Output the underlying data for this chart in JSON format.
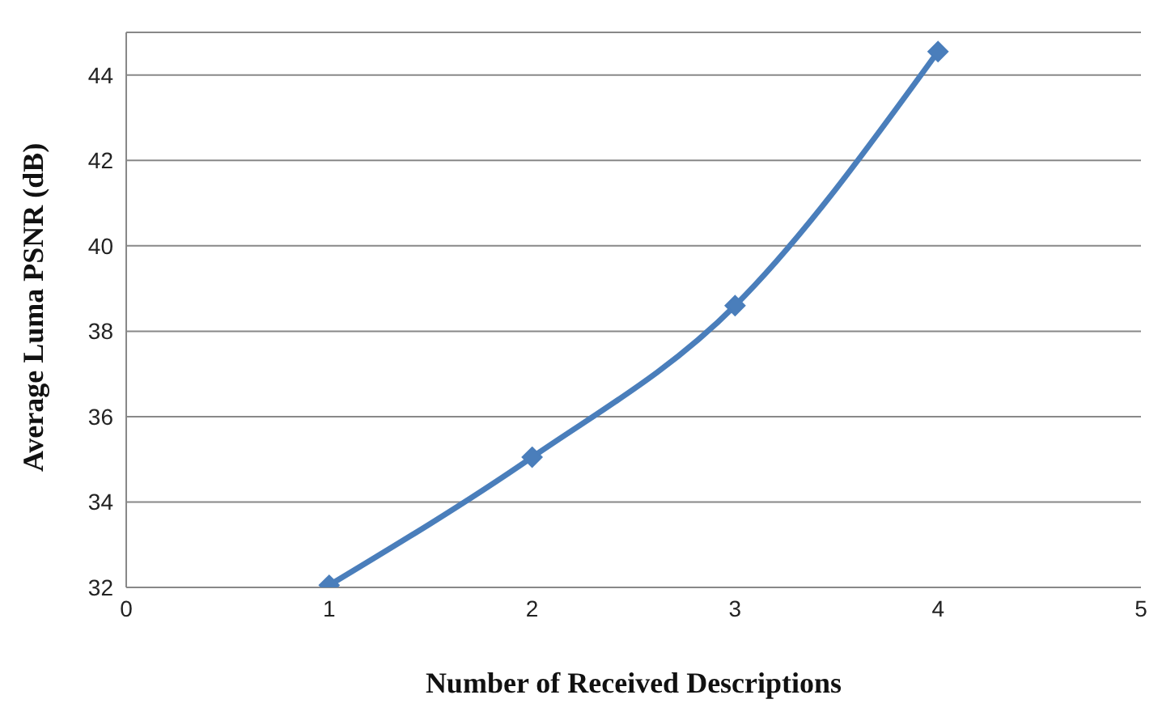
{
  "chart_data": {
    "type": "line",
    "xlabel": "Number of Received Descriptions",
    "ylabel": "Average Luma PSNR (dB)",
    "x": [
      1,
      2,
      3,
      4
    ],
    "series": [
      {
        "color": "#4a7ebb",
        "values": [
          32.05,
          35.05,
          38.6,
          44.55
        ]
      }
    ],
    "xlim": [
      0,
      5
    ],
    "xticks": [
      0,
      1,
      2,
      3,
      4,
      5
    ],
    "ylim": [
      32,
      45
    ],
    "yticks": [
      32,
      34,
      36,
      38,
      40,
      42,
      44
    ],
    "grid": "y",
    "legend": false,
    "marker": "diamond",
    "line_style": "solid"
  }
}
